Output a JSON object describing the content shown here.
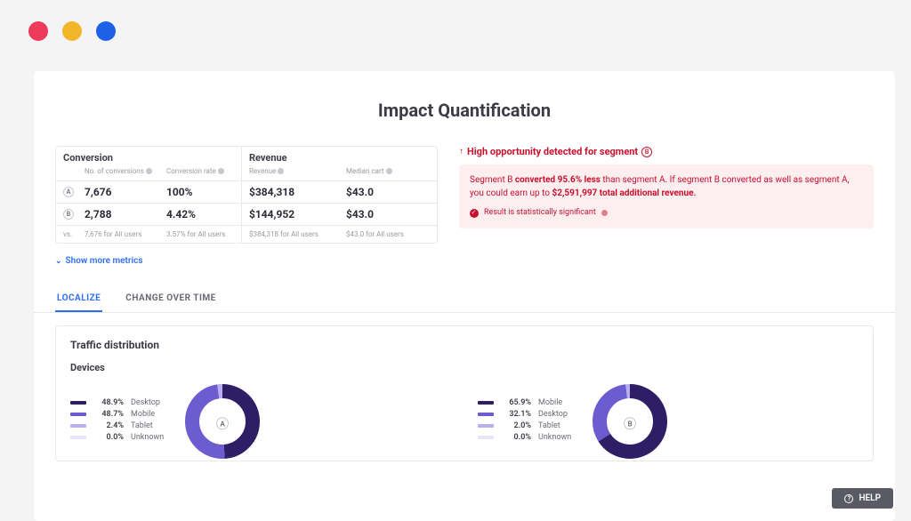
{
  "window_dots": {
    "colors": [
      "#ef3b5b",
      "#f3b52a",
      "#1f61e6"
    ]
  },
  "page_title": "Impact Quantification",
  "metrics": {
    "sections": {
      "conversion": "Conversion",
      "revenue": "Revenue"
    },
    "columns": {
      "conversions": "No. of conversions",
      "conv_rate": "Conversion rate",
      "revenue": "Revenue",
      "median_cart": "Median cart"
    },
    "rows": [
      {
        "segment": "A",
        "conversions": "7,676",
        "conv_rate": "100%",
        "revenue": "$384,318",
        "median_cart": "$43.0"
      },
      {
        "segment": "B",
        "conversions": "2,788",
        "conv_rate": "4.42%",
        "revenue": "$144,952",
        "median_cart": "$43.0"
      }
    ],
    "vs_label": "vs.",
    "vs": {
      "conversions": "7,676 for All users",
      "conv_rate": "3.57% for All users",
      "revenue": "$384,318 for All users",
      "median_cart": "$43.0 for All users"
    },
    "show_more": "Show more metrics"
  },
  "opportunity": {
    "header_prefix": "High opportunity detected for segment",
    "header_segment": "B",
    "body_pre": "Segment B ",
    "body_bold1": "converted 95.6% less",
    "body_mid": " than segment A. If segment B converted as well as segment A, you could earn up to ",
    "body_bold2": "$2,591,997 total additional revenue.",
    "significance": "Result is statistically significant",
    "colors": {
      "text": "#c8102e",
      "bg": "#fdeef0"
    }
  },
  "tabs": [
    {
      "label": "LOCALIZE",
      "active": true
    },
    {
      "label": "CHANGE OVER TIME",
      "active": false
    }
  ],
  "traffic": {
    "card_title": "Traffic distribution",
    "section_title": "Devices",
    "donut": {
      "size": 88,
      "radius": 34,
      "stroke": 16,
      "track_color": "#ececf1"
    },
    "palette": [
      "#2d1e66",
      "#6d5bd0",
      "#b9aef0",
      "#e8e5f8"
    ],
    "blocks": [
      {
        "segment": "A",
        "items": [
          {
            "label": "Desktop",
            "pct": 48.9
          },
          {
            "label": "Mobile",
            "pct": 48.7
          },
          {
            "label": "Tablet",
            "pct": 2.4
          },
          {
            "label": "Unknown",
            "pct": 0.0
          }
        ]
      },
      {
        "segment": "B",
        "items": [
          {
            "label": "Mobile",
            "pct": 65.9
          },
          {
            "label": "Desktop",
            "pct": 32.1
          },
          {
            "label": "Tablet",
            "pct": 2.0
          },
          {
            "label": "Unknown",
            "pct": 0.0
          }
        ]
      }
    ]
  },
  "help_label": "HELP"
}
